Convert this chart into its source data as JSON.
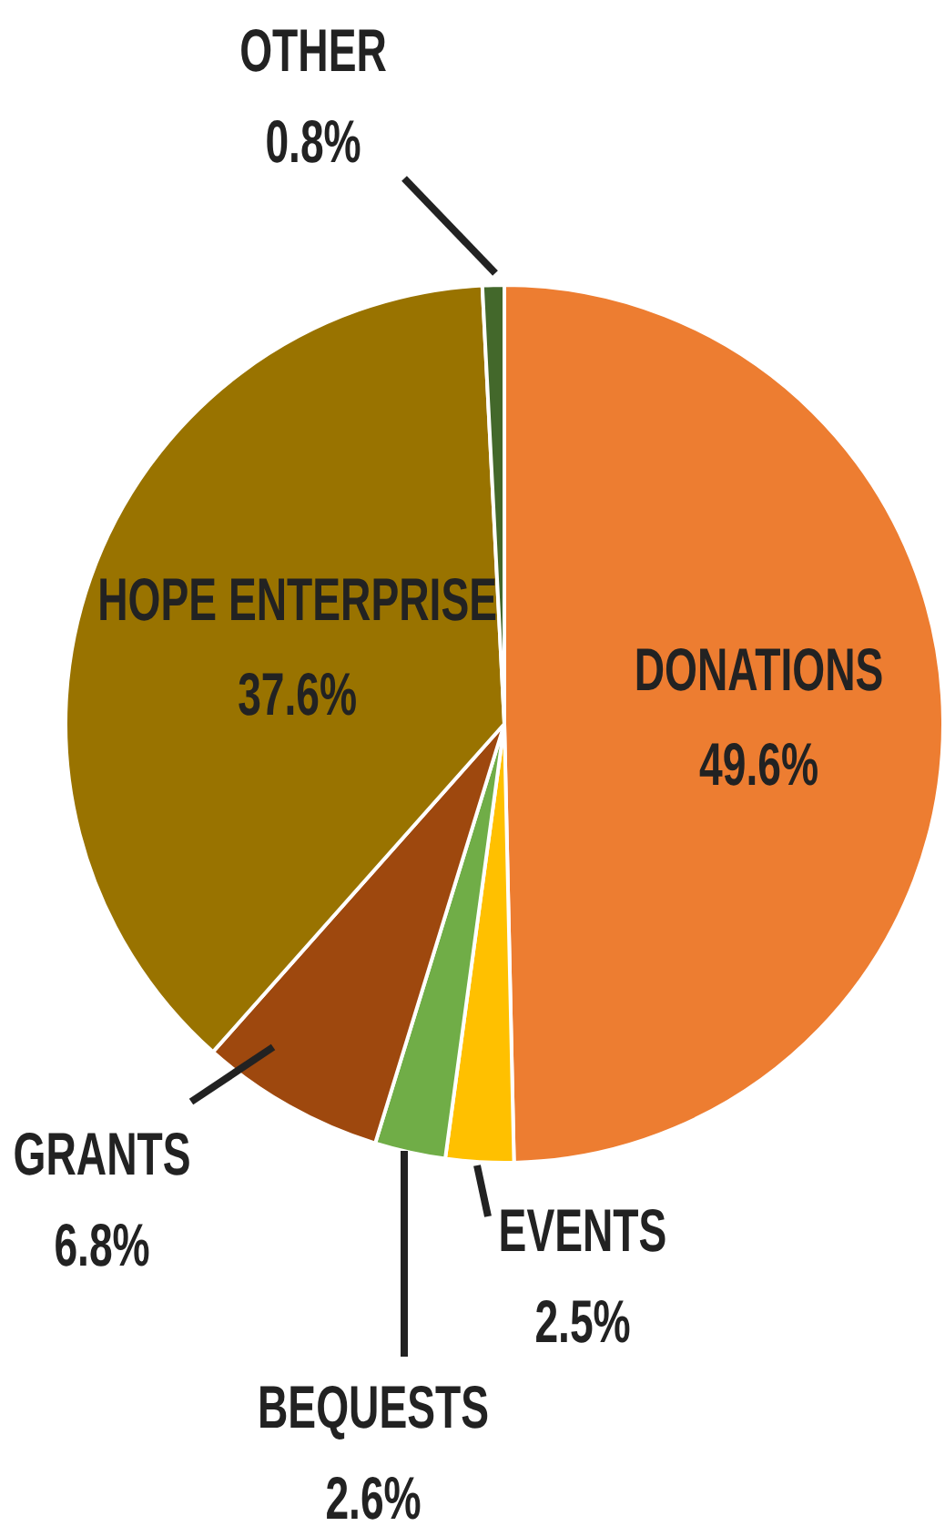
{
  "chart_data": {
    "type": "pie",
    "categories": [
      "DONATIONS",
      "EVENTS",
      "BEQUESTS",
      "GRANTS",
      "HOPE ENTERPRISE",
      "OTHER"
    ],
    "values": [
      49.6,
      2.5,
      2.6,
      6.8,
      37.6,
      0.8
    ],
    "colors": [
      "#ed7d31",
      "#ffc000",
      "#70ad47",
      "#9e480e",
      "#997300",
      "#43682b"
    ],
    "value_labels": [
      "49.6%",
      "2.5%",
      "2.6%",
      "6.8%",
      "37.6%",
      "0.8%"
    ],
    "legend": false
  }
}
